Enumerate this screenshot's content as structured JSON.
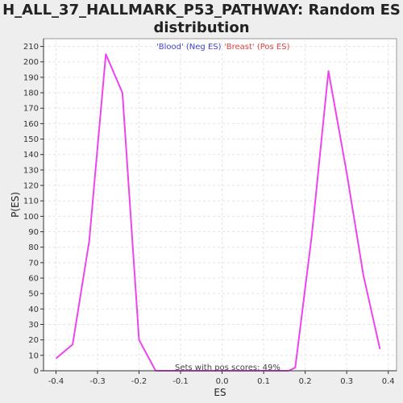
{
  "page": {
    "title_line1": "H_ALL_37_HALLMARK_P53_PATHWAY: Random ES",
    "title_line2": "distribution"
  },
  "chart_data": {
    "type": "line",
    "xlabel": "ES",
    "ylabel": "P(ES)",
    "xlim": [
      -0.43,
      0.42
    ],
    "ylim": [
      0,
      215
    ],
    "x_ticks": [
      -0.4,
      -0.3,
      -0.2,
      -0.1,
      0.0,
      0.1,
      0.2,
      0.3,
      0.4
    ],
    "x_tick_labels": [
      "-0.4",
      "-0.3",
      "-0.2",
      "-0.1",
      "0.0",
      "0.1",
      "0.2",
      "0.3",
      "0.4"
    ],
    "y_ticks": [
      0,
      10,
      20,
      30,
      40,
      50,
      60,
      70,
      80,
      90,
      100,
      110,
      120,
      130,
      140,
      150,
      160,
      170,
      180,
      190,
      200,
      210
    ],
    "grid": true,
    "legend": [
      {
        "label": "'Blood' (Neg ES)",
        "color": "#4444cc"
      },
      {
        "label": "'Breast' (Pos ES)",
        "color": "#dd4444"
      }
    ],
    "legend_placement": "top-center",
    "annotation": "Sets with pos scores: 49%",
    "series": [
      {
        "color": "#ee44ee",
        "x": [
          -0.4,
          -0.36,
          -0.32,
          -0.28,
          -0.24,
          -0.2,
          -0.16,
          -0.12,
          -0.08,
          -0.04,
          0.0,
          0.04,
          0.08,
          0.12,
          0.16,
          0.176,
          0.216,
          0.256,
          0.3,
          0.34,
          0.38
        ],
        "y": [
          8,
          17,
          84,
          205,
          180,
          20,
          0,
          0,
          0,
          0,
          0,
          0,
          0,
          0,
          0,
          2,
          88,
          194,
          128,
          62,
          14
        ]
      }
    ]
  },
  "colors": {
    "page_bg": "#eeeeee",
    "plot_bg": "#ffffff",
    "grid": "#e4e4e4",
    "axis": "#333333",
    "line": "#ee44ee"
  }
}
